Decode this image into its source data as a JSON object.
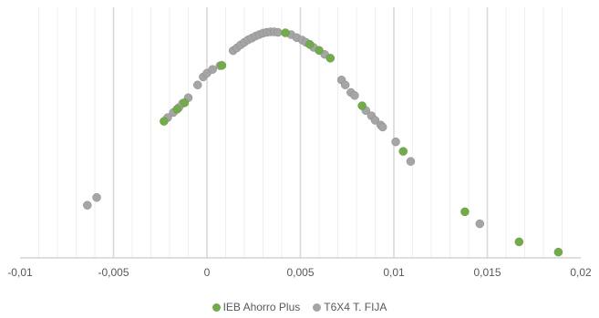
{
  "chart_data": {
    "type": "scatter",
    "title": "",
    "xlabel": "",
    "ylabel": "",
    "xlim": [
      -0.01,
      0.02
    ],
    "ylim": [
      0,
      1
    ],
    "x_ticks": [
      "-0,01",
      "-0,005",
      "0",
      "0,005",
      "0,01",
      "0,015",
      "0,02"
    ],
    "x_tick_values": [
      -0.01,
      -0.005,
      0,
      0.005,
      0.01,
      0.015,
      0.02
    ],
    "grid": {
      "major_vertical": true,
      "minor_vertical": true,
      "horizontal": false
    },
    "legend": "bottom",
    "series": [
      {
        "name": "IEB Ahorro Plus",
        "color": "#70AD47",
        "points": [
          {
            "x": -0.0023,
            "y": 0.545
          },
          {
            "x": -0.0016,
            "y": 0.593
          },
          {
            "x": -0.0012,
            "y": 0.619
          },
          {
            "x": 0.0008,
            "y": 0.768
          },
          {
            "x": 0.0042,
            "y": 0.898
          },
          {
            "x": 0.0055,
            "y": 0.852
          },
          {
            "x": 0.006,
            "y": 0.828
          },
          {
            "x": 0.0066,
            "y": 0.797
          },
          {
            "x": 0.0083,
            "y": 0.607
          },
          {
            "x": 0.0105,
            "y": 0.425
          },
          {
            "x": 0.0138,
            "y": 0.184
          },
          {
            "x": 0.0167,
            "y": 0.064
          },
          {
            "x": 0.0188,
            "y": 0.023
          }
        ]
      },
      {
        "name": "T6X4 T. FIJA",
        "color": "#A5A5A5",
        "points": [
          {
            "x": -0.0064,
            "y": 0.21
          },
          {
            "x": -0.0059,
            "y": 0.241
          },
          {
            "x": -0.0021,
            "y": 0.56
          },
          {
            "x": -0.0018,
            "y": 0.58
          },
          {
            "x": -0.0015,
            "y": 0.6
          },
          {
            "x": -0.0013,
            "y": 0.617
          },
          {
            "x": -0.001,
            "y": 0.639
          },
          {
            "x": -0.0005,
            "y": 0.69
          },
          {
            "x": -0.0002,
            "y": 0.722
          },
          {
            "x": 0.0,
            "y": 0.737
          },
          {
            "x": 0.0003,
            "y": 0.752
          },
          {
            "x": 0.0007,
            "y": 0.767
          },
          {
            "x": 0.0014,
            "y": 0.827
          },
          {
            "x": 0.0016,
            "y": 0.838
          },
          {
            "x": 0.0018,
            "y": 0.85
          },
          {
            "x": 0.002,
            "y": 0.86
          },
          {
            "x": 0.0022,
            "y": 0.87
          },
          {
            "x": 0.0024,
            "y": 0.877
          },
          {
            "x": 0.0026,
            "y": 0.885
          },
          {
            "x": 0.0028,
            "y": 0.891
          },
          {
            "x": 0.003,
            "y": 0.897
          },
          {
            "x": 0.0032,
            "y": 0.9
          },
          {
            "x": 0.0034,
            "y": 0.902
          },
          {
            "x": 0.0036,
            "y": 0.902
          },
          {
            "x": 0.0038,
            "y": 0.9
          },
          {
            "x": 0.0045,
            "y": 0.891
          },
          {
            "x": 0.0048,
            "y": 0.879
          },
          {
            "x": 0.0051,
            "y": 0.869
          },
          {
            "x": 0.0053,
            "y": 0.86
          },
          {
            "x": 0.0057,
            "y": 0.84
          },
          {
            "x": 0.0063,
            "y": 0.812
          },
          {
            "x": 0.0072,
            "y": 0.71
          },
          {
            "x": 0.0074,
            "y": 0.69
          },
          {
            "x": 0.0077,
            "y": 0.66
          },
          {
            "x": 0.0079,
            "y": 0.648
          },
          {
            "x": 0.0085,
            "y": 0.588
          },
          {
            "x": 0.0088,
            "y": 0.567
          },
          {
            "x": 0.009,
            "y": 0.549
          },
          {
            "x": 0.0093,
            "y": 0.53
          },
          {
            "x": 0.0094,
            "y": 0.522
          },
          {
            "x": 0.0101,
            "y": 0.463
          },
          {
            "x": 0.0109,
            "y": 0.385
          },
          {
            "x": 0.0146,
            "y": 0.136
          }
        ]
      }
    ]
  }
}
